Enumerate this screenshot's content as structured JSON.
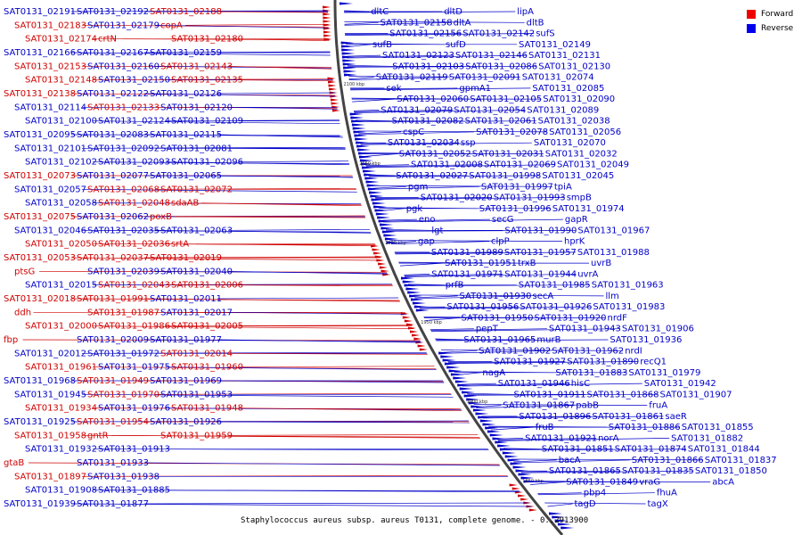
{
  "legend": {
    "forward_label": "Forward",
    "reverse_label": "Reverse",
    "forward_color": "#ee0000",
    "reverse_color": "#0000ee"
  },
  "caption": "Staphylococcus aureus subsp. aureus T0131, complete genome. - 0..2913900",
  "ticks": [
    "2100 kbp",
    "2050 kbp",
    "2000 kbp",
    "1950 kbp",
    "1900 kbp",
    "1850 kbp"
  ],
  "left_labels": [
    {
      "text": "SAT0131_02191",
      "strand": "reverse"
    },
    {
      "text": "SAT0131_02192",
      "strand": "reverse"
    },
    {
      "text": "SAT0131_02188",
      "strand": "forward"
    },
    {
      "text": "SAT0131_02183",
      "strand": "forward"
    },
    {
      "text": "SAT0131_02179",
      "strand": "reverse"
    },
    {
      "text": "copA",
      "strand": "forward"
    },
    {
      "text": "SAT0131_02174",
      "strand": "forward"
    },
    {
      "text": "crtN",
      "strand": "forward"
    },
    {
      "text": "SAT0131_02180",
      "strand": "forward"
    },
    {
      "text": "SAT0131_02166",
      "strand": "reverse"
    },
    {
      "text": "SAT0131_02167",
      "strand": "reverse"
    },
    {
      "text": "SAT0131_02159",
      "strand": "reverse"
    },
    {
      "text": "SAT0131_02153",
      "strand": "forward"
    },
    {
      "text": "SAT0131_02160",
      "strand": "reverse"
    },
    {
      "text": "SAT0131_02143",
      "strand": "forward"
    },
    {
      "text": "SAT0131_02148",
      "strand": "forward"
    },
    {
      "text": "SAT0131_02150",
      "strand": "reverse"
    },
    {
      "text": "SAT0131_02135",
      "strand": "forward"
    },
    {
      "text": "SAT0131_02138",
      "strand": "forward"
    },
    {
      "text": "SAT0131_02122",
      "strand": "reverse"
    },
    {
      "text": "SAT0131_02126",
      "strand": "reverse"
    },
    {
      "text": "SAT0131_02114",
      "strand": "reverse"
    },
    {
      "text": "SAT0131_02133",
      "strand": "forward"
    },
    {
      "text": "SAT0131_02120",
      "strand": "reverse"
    },
    {
      "text": "SAT0131_02100",
      "strand": "reverse"
    },
    {
      "text": "SAT0131_02124",
      "strand": "reverse"
    },
    {
      "text": "SAT0131_02109",
      "strand": "reverse"
    },
    {
      "text": "SAT0131_02095",
      "strand": "reverse"
    },
    {
      "text": "SAT0131_02083",
      "strand": "reverse"
    },
    {
      "text": "SAT0131_02115",
      "strand": "reverse"
    },
    {
      "text": "SAT0131_02101",
      "strand": "reverse"
    },
    {
      "text": "SAT0131_02092",
      "strand": "reverse"
    },
    {
      "text": "SAT0131_02081",
      "strand": "reverse"
    },
    {
      "text": "SAT0131_02102",
      "strand": "reverse"
    },
    {
      "text": "SAT0131_02093",
      "strand": "reverse"
    },
    {
      "text": "SAT0131_02096",
      "strand": "reverse"
    },
    {
      "text": "SAT0131_02073",
      "strand": "forward"
    },
    {
      "text": "SAT0131_02077",
      "strand": "reverse"
    },
    {
      "text": "SAT0131_02065",
      "strand": "reverse"
    },
    {
      "text": "SAT0131_02057",
      "strand": "reverse"
    },
    {
      "text": "SAT0131_02068",
      "strand": "forward"
    },
    {
      "text": "SAT0131_02072",
      "strand": "forward"
    },
    {
      "text": "SAT0131_02058",
      "strand": "reverse"
    },
    {
      "text": "SAT0131_02048",
      "strand": "forward"
    },
    {
      "text": "sdaAB",
      "strand": "forward"
    },
    {
      "text": "SAT0131_02075",
      "strand": "forward"
    },
    {
      "text": "SAT0131_02062",
      "strand": "reverse"
    },
    {
      "text": "poxB",
      "strand": "forward"
    },
    {
      "text": "SAT0131_02046",
      "strand": "reverse"
    },
    {
      "text": "SAT0131_02035",
      "strand": "reverse"
    },
    {
      "text": "SAT0131_02063",
      "strand": "reverse"
    },
    {
      "text": "SAT0131_02050",
      "strand": "forward"
    },
    {
      "text": "SAT0131_02036",
      "strand": "forward"
    },
    {
      "text": "srtA",
      "strand": "forward"
    },
    {
      "text": "SAT0131_02053",
      "strand": "forward"
    },
    {
      "text": "SAT0131_02037",
      "strand": "forward"
    },
    {
      "text": "SAT0131_02019",
      "strand": "forward"
    },
    {
      "text": "ptsG",
      "strand": "forward"
    },
    {
      "text": "SAT0131_02039",
      "strand": "reverse"
    },
    {
      "text": "SAT0131_02040",
      "strand": "reverse"
    },
    {
      "text": "SAT0131_02015",
      "strand": "reverse"
    },
    {
      "text": "SAT0131_02043",
      "strand": "forward"
    },
    {
      "text": "SAT0131_02006",
      "strand": "forward"
    },
    {
      "text": "SAT0131_02018",
      "strand": "forward"
    },
    {
      "text": "SAT0131_01991",
      "strand": "forward"
    },
    {
      "text": "SAT0131_02011",
      "strand": "reverse"
    },
    {
      "text": "ddh",
      "strand": "forward"
    },
    {
      "text": "SAT0131_01987",
      "strand": "forward"
    },
    {
      "text": "SAT0131_02017",
      "strand": "reverse"
    },
    {
      "text": "SAT0131_02000",
      "strand": "forward"
    },
    {
      "text": "SAT0131_01986",
      "strand": "forward"
    },
    {
      "text": "SAT0131_02005",
      "strand": "forward"
    },
    {
      "text": "fbp",
      "strand": "forward"
    },
    {
      "text": "SAT0131_02009",
      "strand": "reverse"
    },
    {
      "text": "SAT0131_01977",
      "strand": "reverse"
    },
    {
      "text": "SAT0131_02012",
      "strand": "reverse"
    },
    {
      "text": "SAT0131_01972",
      "strand": "reverse"
    },
    {
      "text": "SAT0131_02014",
      "strand": "forward"
    },
    {
      "text": "SAT0131_01961",
      "strand": "forward"
    },
    {
      "text": "SAT0131_01975",
      "strand": "reverse"
    },
    {
      "text": "SAT0131_01960",
      "strand": "forward"
    },
    {
      "text": "SAT0131_01968",
      "strand": "reverse"
    },
    {
      "text": "SAT0131_01949",
      "strand": "forward"
    },
    {
      "text": "SAT0131_01969",
      "strand": "reverse"
    },
    {
      "text": "SAT0131_01945",
      "strand": "reverse"
    },
    {
      "text": "SAT0131_01970",
      "strand": "forward"
    },
    {
      "text": "SAT0131_01953",
      "strand": "reverse"
    },
    {
      "text": "SAT0131_01934",
      "strand": "forward"
    },
    {
      "text": "SAT0131_01976",
      "strand": "reverse"
    },
    {
      "text": "SAT0131_01948",
      "strand": "forward"
    },
    {
      "text": "SAT0131_01925",
      "strand": "reverse"
    },
    {
      "text": "SAT0131_01954",
      "strand": "forward"
    },
    {
      "text": "SAT0131_01926",
      "strand": "reverse"
    },
    {
      "text": "SAT0131_01958",
      "strand": "forward"
    },
    {
      "text": "gntR",
      "strand": "forward"
    },
    {
      "text": "SAT0131_01959",
      "strand": "forward"
    },
    {
      "text": "SAT0131_01932",
      "strand": "reverse"
    },
    {
      "text": "SAT0131_01913",
      "strand": "reverse"
    },
    {
      "text": "gtaB",
      "strand": "forward"
    },
    {
      "text": "SAT0131_01933",
      "strand": "reverse"
    },
    {
      "text": "SAT0131_01897",
      "strand": "forward"
    },
    {
      "text": "SAT0131_01938",
      "strand": "reverse"
    },
    {
      "text": "SAT0131_01908",
      "strand": "reverse"
    },
    {
      "text": "SAT0131_01885",
      "strand": "reverse"
    },
    {
      "text": "SAT0131_01939",
      "strand": "reverse"
    },
    {
      "text": "SAT0131_01877",
      "strand": "reverse"
    }
  ],
  "right_labels": [
    {
      "text": "dltC",
      "strand": "reverse"
    },
    {
      "text": "dltD",
      "strand": "reverse"
    },
    {
      "text": "lipA",
      "strand": "reverse"
    },
    {
      "text": "SAT0131_02158",
      "strand": "reverse"
    },
    {
      "text": "dltA",
      "strand": "reverse"
    },
    {
      "text": "dltB",
      "strand": "reverse"
    },
    {
      "text": "SAT0131_02156",
      "strand": "reverse"
    },
    {
      "text": "SAT0131_02142",
      "strand": "reverse"
    },
    {
      "text": "sufS",
      "strand": "reverse"
    },
    {
      "text": "sufB",
      "strand": "reverse"
    },
    {
      "text": "sufD",
      "strand": "reverse"
    },
    {
      "text": "SAT0131_02149",
      "strand": "reverse"
    },
    {
      "text": "SAT0131_02123",
      "strand": "reverse"
    },
    {
      "text": "SAT0131_02146",
      "strand": "reverse"
    },
    {
      "text": "SAT0131_02131",
      "strand": "reverse"
    },
    {
      "text": "SAT0131_02103",
      "strand": "reverse"
    },
    {
      "text": "SAT0131_02086",
      "strand": "reverse"
    },
    {
      "text": "SAT0131_02130",
      "strand": "reverse"
    },
    {
      "text": "SAT0131_02119",
      "strand": "reverse"
    },
    {
      "text": "SAT0131_02091",
      "strand": "reverse"
    },
    {
      "text": "SAT0131_02074",
      "strand": "reverse"
    },
    {
      "text": "sek",
      "strand": "reverse"
    },
    {
      "text": "gpmA1",
      "strand": "reverse"
    },
    {
      "text": "SAT0131_02085",
      "strand": "reverse"
    },
    {
      "text": "SAT0131_02060",
      "strand": "reverse"
    },
    {
      "text": "SAT0131_02105",
      "strand": "reverse"
    },
    {
      "text": "SAT0131_02090",
      "strand": "reverse"
    },
    {
      "text": "SAT0131_02079",
      "strand": "reverse"
    },
    {
      "text": "SAT0131_02054",
      "strand": "reverse"
    },
    {
      "text": "SAT0131_02089",
      "strand": "reverse"
    },
    {
      "text": "SAT0131_02082",
      "strand": "reverse"
    },
    {
      "text": "SAT0131_02061",
      "strand": "reverse"
    },
    {
      "text": "SAT0131_02038",
      "strand": "reverse"
    },
    {
      "text": "cspC",
      "strand": "reverse"
    },
    {
      "text": "SAT0131_02078",
      "strand": "reverse"
    },
    {
      "text": "SAT0131_02056",
      "strand": "reverse"
    },
    {
      "text": "SAT0131_02034",
      "strand": "reverse"
    },
    {
      "text": "ssp",
      "strand": "reverse"
    },
    {
      "text": "SAT0131_02070",
      "strand": "reverse"
    },
    {
      "text": "SAT0131_02052",
      "strand": "reverse"
    },
    {
      "text": "SAT0131_02031",
      "strand": "reverse"
    },
    {
      "text": "SAT0131_02032",
      "strand": "reverse"
    },
    {
      "text": "SAT0131_02008",
      "strand": "reverse"
    },
    {
      "text": "SAT0131_02069",
      "strand": "reverse"
    },
    {
      "text": "SAT0131_02049",
      "strand": "reverse"
    },
    {
      "text": "SAT0131_02027",
      "strand": "reverse"
    },
    {
      "text": "SAT0131_01998",
      "strand": "reverse"
    },
    {
      "text": "SAT0131_02045",
      "strand": "reverse"
    },
    {
      "text": "pgm",
      "strand": "reverse"
    },
    {
      "text": "SAT0131_01997",
      "strand": "reverse"
    },
    {
      "text": "tpiA",
      "strand": "reverse"
    },
    {
      "text": "SAT0131_02020",
      "strand": "reverse"
    },
    {
      "text": "SAT0131_01993",
      "strand": "reverse"
    },
    {
      "text": "smpB",
      "strand": "reverse"
    },
    {
      "text": "pgk",
      "strand": "reverse"
    },
    {
      "text": "SAT0131_01996",
      "strand": "reverse"
    },
    {
      "text": "SAT0131_01974",
      "strand": "reverse"
    },
    {
      "text": "eno",
      "strand": "reverse"
    },
    {
      "text": "secG",
      "strand": "reverse"
    },
    {
      "text": "gapR",
      "strand": "reverse"
    },
    {
      "text": "lgt",
      "strand": "reverse"
    },
    {
      "text": "SAT0131_01990",
      "strand": "reverse"
    },
    {
      "text": "SAT0131_01967",
      "strand": "reverse"
    },
    {
      "text": "gap",
      "strand": "reverse"
    },
    {
      "text": "clpP",
      "strand": "reverse"
    },
    {
      "text": "hprK",
      "strand": "reverse"
    },
    {
      "text": "SAT0131_01989",
      "strand": "reverse"
    },
    {
      "text": "SAT0131_01957",
      "strand": "reverse"
    },
    {
      "text": "SAT0131_01988",
      "strand": "reverse"
    },
    {
      "text": "SAT0131_01951",
      "strand": "reverse"
    },
    {
      "text": "trxB",
      "strand": "reverse"
    },
    {
      "text": "uvrB",
      "strand": "reverse"
    },
    {
      "text": "SAT0131_01971",
      "strand": "reverse"
    },
    {
      "text": "SAT0131_01944",
      "strand": "reverse"
    },
    {
      "text": "uvrA",
      "strand": "reverse"
    },
    {
      "text": "prfB",
      "strand": "reverse"
    },
    {
      "text": "SAT0131_01985",
      "strand": "reverse"
    },
    {
      "text": "SAT0131_01963",
      "strand": "reverse"
    },
    {
      "text": "SAT0131_01930",
      "strand": "reverse"
    },
    {
      "text": "secA",
      "strand": "reverse"
    },
    {
      "text": "llm",
      "strand": "reverse"
    },
    {
      "text": "SAT0131_01956",
      "strand": "reverse"
    },
    {
      "text": "SAT0131_01926",
      "strand": "reverse"
    },
    {
      "text": "SAT0131_01983",
      "strand": "reverse"
    },
    {
      "text": "SAT0131_01950",
      "strand": "reverse"
    },
    {
      "text": "SAT0131_01920",
      "strand": "reverse"
    },
    {
      "text": "nrdF",
      "strand": "reverse"
    },
    {
      "text": "pepT",
      "strand": "reverse"
    },
    {
      "text": "SAT0131_01943",
      "strand": "reverse"
    },
    {
      "text": "SAT0131_01906",
      "strand": "reverse"
    },
    {
      "text": "SAT0131_01965",
      "strand": "reverse"
    },
    {
      "text": "murB",
      "strand": "reverse"
    },
    {
      "text": "SAT0131_01936",
      "strand": "reverse"
    },
    {
      "text": "SAT0131_01902",
      "strand": "reverse"
    },
    {
      "text": "SAT0131_01962",
      "strand": "reverse"
    },
    {
      "text": "nrdI",
      "strand": "reverse"
    },
    {
      "text": "SAT0131_01927",
      "strand": "reverse"
    },
    {
      "text": "SAT0131_01890",
      "strand": "reverse"
    },
    {
      "text": "recQ1",
      "strand": "reverse"
    },
    {
      "text": "nagA",
      "strand": "reverse"
    },
    {
      "text": "SAT0131_01883",
      "strand": "reverse"
    },
    {
      "text": "SAT0131_01979",
      "strand": "reverse"
    },
    {
      "text": "SAT0131_01946",
      "strand": "reverse"
    },
    {
      "text": "hisC",
      "strand": "reverse"
    },
    {
      "text": "SAT0131_01942",
      "strand": "reverse"
    },
    {
      "text": "SAT0131_01911",
      "strand": "reverse"
    },
    {
      "text": "SAT0131_01868",
      "strand": "reverse"
    },
    {
      "text": "SAT0131_01907",
      "strand": "reverse"
    },
    {
      "text": "SAT0131_01867",
      "strand": "reverse"
    },
    {
      "text": "pabB",
      "strand": "reverse"
    },
    {
      "text": "fruA",
      "strand": "reverse"
    },
    {
      "text": "SAT0131_01896",
      "strand": "reverse"
    },
    {
      "text": "SAT0131_01861",
      "strand": "reverse"
    },
    {
      "text": "saeR",
      "strand": "reverse"
    },
    {
      "text": "fruB",
      "strand": "reverse"
    },
    {
      "text": "SAT0131_01886",
      "strand": "reverse"
    },
    {
      "text": "SAT0131_01855",
      "strand": "reverse"
    },
    {
      "text": "SAT0131_01921",
      "strand": "reverse"
    },
    {
      "text": "norA",
      "strand": "reverse"
    },
    {
      "text": "SAT0131_01882",
      "strand": "reverse"
    },
    {
      "text": "SAT0131_01851",
      "strand": "reverse"
    },
    {
      "text": "SAT0131_01874",
      "strand": "reverse"
    },
    {
      "text": "SAT0131_01844",
      "strand": "reverse"
    },
    {
      "text": "bacA",
      "strand": "reverse"
    },
    {
      "text": "SAT0131_01866",
      "strand": "reverse"
    },
    {
      "text": "SAT0131_01837",
      "strand": "reverse"
    },
    {
      "text": "SAT0131_01865",
      "strand": "reverse"
    },
    {
      "text": "SAT0131_01835",
      "strand": "reverse"
    },
    {
      "text": "SAT0131_01850",
      "strand": "reverse"
    },
    {
      "text": "SAT0131_01849",
      "strand": "reverse"
    },
    {
      "text": "vraG",
      "strand": "reverse"
    },
    {
      "text": "abcA",
      "strand": "reverse"
    },
    {
      "text": "pbp4",
      "strand": "reverse"
    },
    {
      "text": "fhuA",
      "strand": "reverse"
    },
    {
      "text": "tagD",
      "strand": "reverse"
    },
    {
      "text": "tagX",
      "strand": "reverse"
    }
  ]
}
